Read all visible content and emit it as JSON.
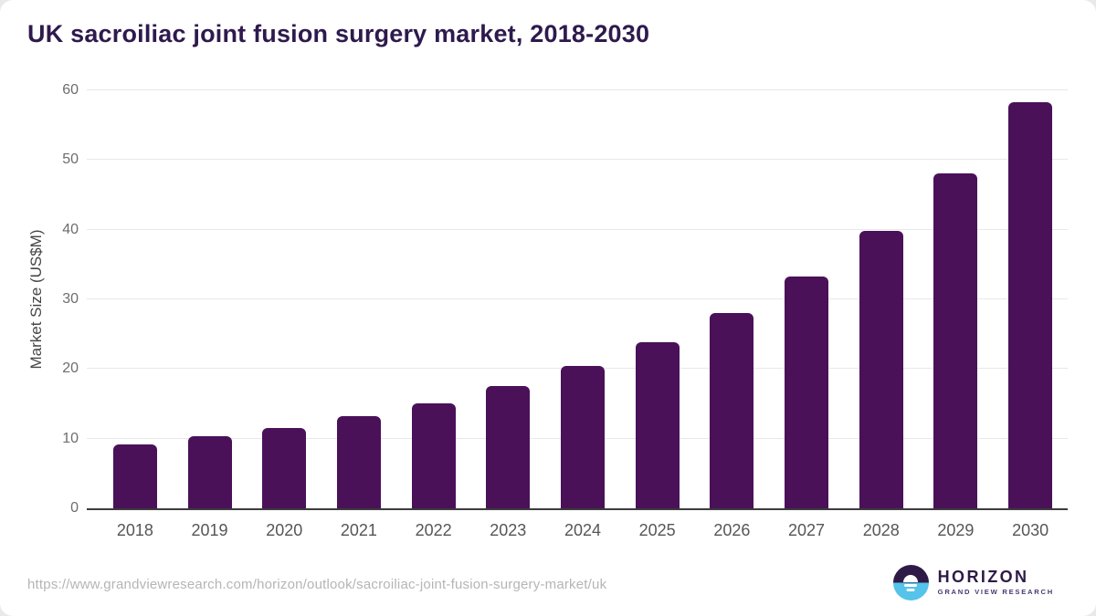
{
  "title": "UK sacroiliac joint fusion surgery market, 2018-2030",
  "chart_data": {
    "type": "bar",
    "categories": [
      "2018",
      "2019",
      "2020",
      "2021",
      "2022",
      "2023",
      "2024",
      "2025",
      "2026",
      "2027",
      "2028",
      "2029",
      "2030"
    ],
    "values": [
      9.2,
      10.3,
      11.5,
      13.2,
      15.1,
      17.5,
      20.4,
      23.9,
      28.0,
      33.3,
      39.8,
      48.1,
      58.3
    ],
    "title": "UK sacroiliac joint fusion surgery market, 2018-2030",
    "xlabel": "",
    "ylabel": "Market Size (US$M)",
    "ylim": [
      0,
      60
    ],
    "yticks": [
      0,
      10,
      20,
      30,
      40,
      50,
      60
    ],
    "grid": true,
    "legend": "none",
    "bar_color": "#4a1159"
  },
  "footer": {
    "source_url": "https://www.grandviewresearch.com/horizon/outlook/sacroiliac-joint-fusion-surgery-market/uk",
    "logo": {
      "name": "HORIZON",
      "subtitle": "GRAND VIEW RESEARCH"
    }
  },
  "colors": {
    "bar": "#4a1159",
    "title_text": "#2e1a4d",
    "axis_text": "#6d6d6d",
    "xlabel_text": "#565656",
    "gridline": "#e8e8e8",
    "axis_line": "#3c3c3c",
    "url_text": "#b5b5b5",
    "logo_purple": "#2e1a47",
    "logo_blue": "#55c3ea",
    "logo_subtitle": "#4a3770"
  }
}
